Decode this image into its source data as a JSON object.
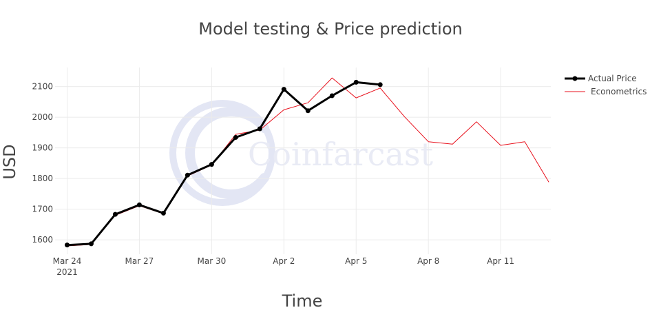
{
  "chart_data": {
    "type": "line",
    "title": "Model testing & Price prediction",
    "xlabel": "Time",
    "ylabel": "USD",
    "watermark": "Coinfarcast",
    "xlim": [
      "2021-03-23 12:00",
      "2021-04-13 02:00"
    ],
    "ylim": [
      1553,
      2162
    ],
    "x_ticks": [
      {
        "date": "2021-03-24",
        "label": "Mar 24",
        "sub": "2021"
      },
      {
        "date": "2021-03-27",
        "label": "Mar 27",
        "sub": ""
      },
      {
        "date": "2021-03-30",
        "label": "Mar 30",
        "sub": ""
      },
      {
        "date": "2021-04-02",
        "label": "Apr 2",
        "sub": ""
      },
      {
        "date": "2021-04-05",
        "label": "Apr 5",
        "sub": ""
      },
      {
        "date": "2021-04-08",
        "label": "Apr 8",
        "sub": ""
      },
      {
        "date": "2021-04-11",
        "label": "Apr 11",
        "sub": ""
      }
    ],
    "y_ticks": [
      1600,
      1700,
      1800,
      1900,
      2000,
      2100
    ],
    "grid": true,
    "legend_position": "top-right",
    "series": [
      {
        "name": "Actual Price",
        "color": "#000000",
        "markers": true,
        "x": [
          "2021-03-24",
          "2021-03-25",
          "2021-03-26",
          "2021-03-27",
          "2021-03-28",
          "2021-03-29",
          "2021-03-30",
          "2021-03-31",
          "2021-04-01",
          "2021-04-02",
          "2021-04-03",
          "2021-04-04",
          "2021-04-05",
          "2021-04-06"
        ],
        "y": [
          1583,
          1587,
          1683,
          1714,
          1687,
          1811,
          1846,
          1934,
          1962,
          2091,
          2021,
          2070,
          2114,
          2106
        ]
      },
      {
        "name": "Econometrics",
        "color": "#e8101c",
        "markers": false,
        "x": [
          "2021-03-24",
          "2021-03-25",
          "2021-03-26",
          "2021-03-27",
          "2021-03-28",
          "2021-03-29",
          "2021-03-30",
          "2021-03-31",
          "2021-04-01",
          "2021-04-02",
          "2021-04-03",
          "2021-04-04",
          "2021-04-05",
          "2021-04-06",
          "2021-04-07",
          "2021-04-08",
          "2021-04-09",
          "2021-04-10",
          "2021-04-11",
          "2021-04-12",
          "2021-04-13"
        ],
        "y": [
          1580,
          1585,
          1680,
          1711,
          1685,
          1808,
          1844,
          1944,
          1958,
          2024,
          2047,
          2128,
          2063,
          2095,
          2002,
          1920,
          1912,
          1985,
          1908,
          1920,
          1788
        ]
      }
    ]
  }
}
